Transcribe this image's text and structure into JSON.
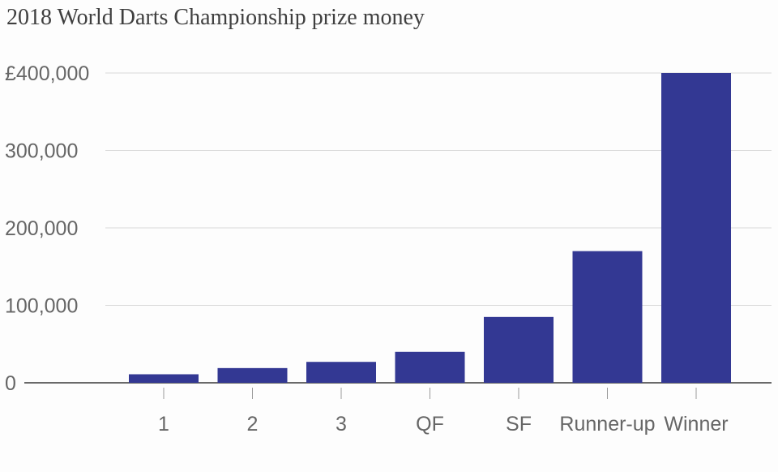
{
  "chart_data": {
    "type": "bar",
    "title": "2018 World Darts Championship prize money",
    "categories": [
      "1",
      "2",
      "3",
      "QF",
      "SF",
      "Runner-up",
      "Winner"
    ],
    "values": [
      11000,
      19000,
      27000,
      40000,
      85000,
      170000,
      400000
    ],
    "ylim": [
      0,
      400000
    ],
    "y_ticks": [
      0,
      100000,
      200000,
      300000,
      400000
    ],
    "y_tick_labels": [
      "0",
      "100,000",
      "200,000",
      "300,000",
      "£400,000"
    ],
    "xlabel": "",
    "ylabel": "",
    "grid": true,
    "bar_color": "#333893"
  }
}
